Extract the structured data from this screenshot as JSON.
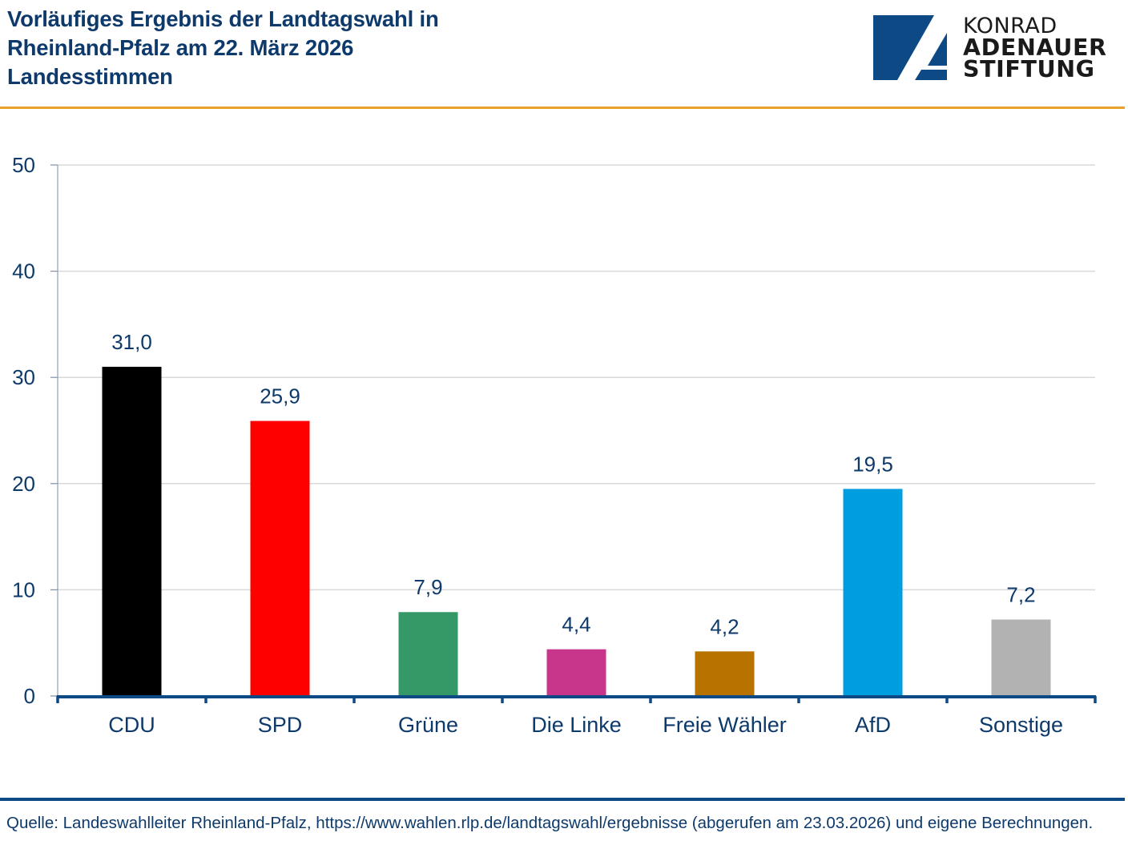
{
  "header": {
    "title_lines": [
      "Vorläufiges Ergebnis der Landtagswahl in",
      "Rheinland-Pfalz am 22. März 2026",
      "Landesstimmen"
    ],
    "logo": {
      "icon": "kas-a-logo-icon",
      "line1": "KONRAD",
      "line2": "ADENAUER",
      "line3": "STIFTUNG"
    }
  },
  "colors": {
    "title": "#0d3a6b",
    "accent_rule": "#e8a22a",
    "axis": "#0d4a85",
    "grid": "#d9d9d9",
    "logo_blue": "#0d4a85"
  },
  "chart_data": {
    "type": "bar",
    "title": "Vorläufiges Ergebnis der Landtagswahl in Rheinland-Pfalz am 22. März 2026 – Landesstimmen",
    "xlabel": "",
    "ylabel": "",
    "ylim": [
      0,
      50
    ],
    "yticks": [
      0,
      10,
      20,
      30,
      40,
      50
    ],
    "grid": true,
    "legend": "none",
    "categories": [
      "CDU",
      "SPD",
      "Grüne",
      "Die Linke",
      "Freie Wähler",
      "AfD",
      "Sonstige"
    ],
    "values": [
      31.0,
      25.9,
      7.9,
      4.4,
      4.2,
      19.5,
      7.2
    ],
    "data_labels": [
      "31,0",
      "25,9",
      "7,9",
      "4,4",
      "4,2",
      "19,5",
      "7,2"
    ],
    "bar_colors": [
      "#000000",
      "#ff0000",
      "#359967",
      "#c8368c",
      "#b87200",
      "#009de0",
      "#b2b2b2"
    ]
  },
  "footer": {
    "source": "Quelle: Landeswahlleiter Rheinland-Pfalz, https://www.wahlen.rlp.de/landtagswahl/ergebnisse (abgerufen am 23.03.2026) und eigene Berechnungen."
  }
}
